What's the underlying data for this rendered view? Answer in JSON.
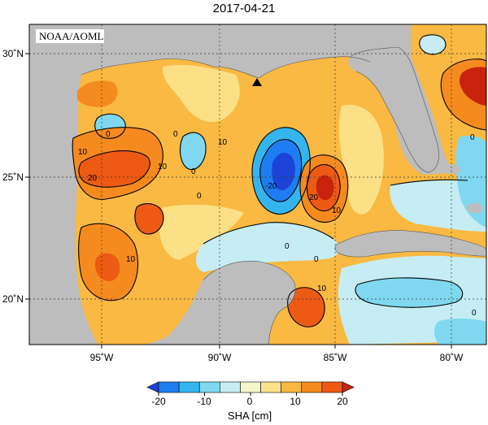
{
  "title": "2017-04-21",
  "agency_label": "NOAA/AOML",
  "x_ticks": [
    "95˚W",
    "90˚W",
    "85˚W",
    "80˚W"
  ],
  "y_ticks": [
    "30˚N",
    "25˚N",
    "20˚N"
  ],
  "contour_labels": [
    "0",
    "10",
    "20",
    "10",
    "0",
    "10",
    "0",
    "10",
    "0",
    "-20",
    "20",
    "10",
    "0",
    "10",
    "0",
    "0",
    "0"
  ],
  "colorbar": {
    "ticks": [
      "-20",
      "-10",
      "0",
      "10",
      "20"
    ],
    "label": "SHA [cm]",
    "colors": [
      "#1d43d6",
      "#1e7df0",
      "#35b5ee",
      "#7fd8ef",
      "#c6edf4",
      "#f6f7c9",
      "#fce28a",
      "#f9b942",
      "#f58a1e",
      "#ec5a14",
      "#c8230d"
    ]
  },
  "marker": "triangle",
  "colors": {
    "land": "#bdbdbd",
    "contour": "#000000"
  }
}
